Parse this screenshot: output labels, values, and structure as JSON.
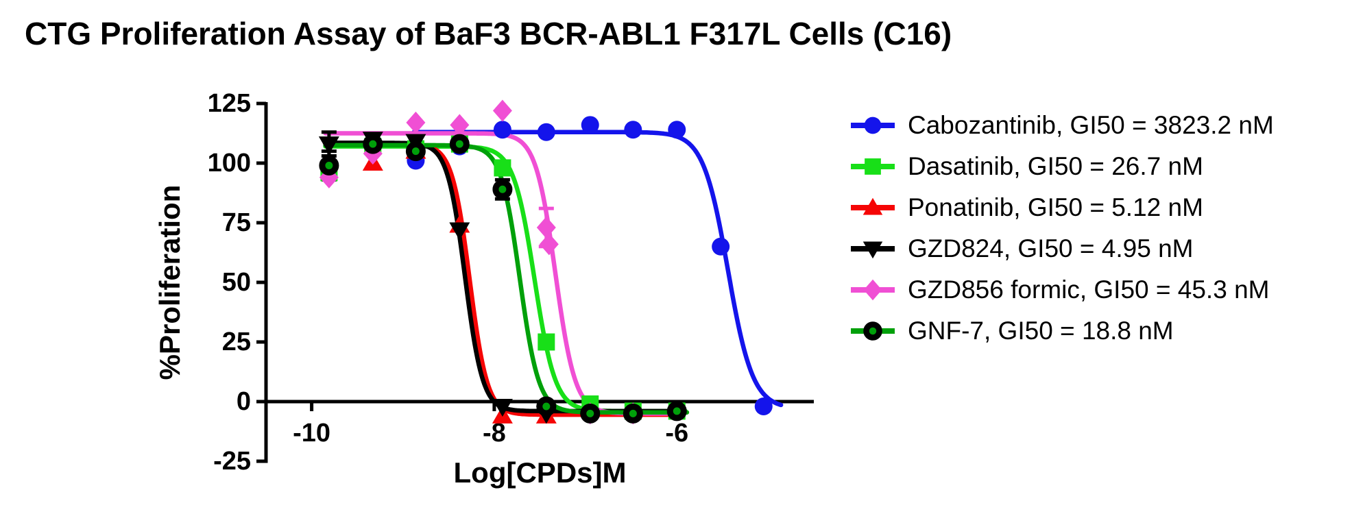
{
  "title": "CTG Proliferation Assay of BaF3 BCR-ABL1 F317L Cells (C16)",
  "colors": {
    "axis": "#000000",
    "background": "#ffffff",
    "text": "#000000"
  },
  "chart_data": {
    "type": "line",
    "title": "CTG Proliferation Assay of BaF3 BCR-ABL1 F317L Cells (C16)",
    "xlabel": "Log[CPDs]M",
    "ylabel": "%Proliferation",
    "xlim": [
      -10.5,
      -4.5
    ],
    "ylim": [
      -25,
      125
    ],
    "grid": false,
    "legend_position": "right",
    "x_ticks": [
      {
        "value": -10,
        "label": "-10"
      },
      {
        "value": -8,
        "label": "-8"
      },
      {
        "value": -6,
        "label": "-6"
      }
    ],
    "y_ticks": [
      {
        "value": 125,
        "label": "125"
      },
      {
        "value": 100,
        "label": "100"
      },
      {
        "value": 75,
        "label": "75"
      },
      {
        "value": 50,
        "label": "50"
      },
      {
        "value": 25,
        "label": "25"
      },
      {
        "value": 0,
        "label": "0"
      },
      {
        "value": -25,
        "label": "-25"
      }
    ],
    "series": [
      {
        "name": "Cabozantinib",
        "label": "Cabozantinib,  GI50 = 3823.2 nM",
        "gi50_nM": 3823.2,
        "color": "#1414EB",
        "marker": "circle",
        "points": [
          [
            -8.86,
            101
          ],
          [
            -8.38,
            107
          ],
          [
            -7.91,
            114
          ],
          [
            -7.43,
            113
          ],
          [
            -6.95,
            116
          ],
          [
            -6.48,
            114
          ],
          [
            -6.0,
            114
          ],
          [
            -5.52,
            65
          ],
          [
            -5.05,
            -2
          ]
        ],
        "fit": {
          "top": 113,
          "bottom": -3,
          "loggi50": -5.44,
          "hill": 3.2,
          "range": [
            -8.88,
            -4.85
          ]
        }
      },
      {
        "name": "Dasatinib",
        "label": "Dasatinib,  GI50 = 26.7 nM",
        "gi50_nM": 26.7,
        "color": "#18DF18",
        "marker": "square",
        "points": [
          [
            -9.81,
            96
          ],
          [
            -9.33,
            107
          ],
          [
            -8.86,
            106
          ],
          [
            -8.38,
            108
          ],
          [
            -7.91,
            98
          ],
          [
            -7.43,
            25
          ],
          [
            -6.95,
            -1
          ],
          [
            -6.48,
            -4
          ],
          [
            -6.0,
            -4
          ]
        ],
        "fit": {
          "top": 107,
          "bottom": -4,
          "loggi50": -7.56,
          "hill": 3.8,
          "range": [
            -9.85,
            -5.9
          ]
        }
      },
      {
        "name": "Ponatinib",
        "label": "Ponatinib,  GI50 = 5.12 nM",
        "gi50_nM": 5.12,
        "color": "#F50505",
        "marker": "triangle-up",
        "points": [
          [
            -9.33,
            100
          ],
          [
            -8.86,
            105
          ],
          [
            -8.38,
            74
          ],
          [
            -7.91,
            -6
          ],
          [
            -7.43,
            -6
          ]
        ],
        "fit": {
          "top": 108,
          "bottom": -5.5,
          "loggi50": -8.27,
          "hill": 4.5,
          "range": [
            -9.85,
            -5.95
          ]
        }
      },
      {
        "name": "GZD824",
        "label": "GZD824,  GI50 = 4.95 nM",
        "gi50_nM": 4.95,
        "color": "#000000",
        "marker": "triangle-down",
        "points": [
          [
            -9.81,
            108,
            5
          ],
          [
            -9.33,
            110
          ],
          [
            -8.86,
            109
          ],
          [
            -8.38,
            72
          ],
          [
            -7.91,
            -2
          ],
          [
            -7.43,
            -5
          ]
        ],
        "fit": {
          "top": 108.5,
          "bottom": -4,
          "loggi50": -8.32,
          "hill": 4.5,
          "range": [
            -9.85,
            -5.95
          ]
        }
      },
      {
        "name": "GZD856 formic",
        "label": "GZD856 formic,  GI50 = 45.3 nM",
        "gi50_nM": 45.3,
        "color": "#F04FD4",
        "marker": "diamond",
        "points": [
          [
            -9.81,
            94
          ],
          [
            -9.33,
            104
          ],
          [
            -8.86,
            117
          ],
          [
            -8.38,
            116
          ],
          [
            -7.91,
            122
          ],
          [
            -7.43,
            73,
            8
          ],
          [
            -7.4,
            66
          ],
          [
            -6.95,
            -5
          ],
          [
            -6.48,
            -5
          ]
        ],
        "fit": {
          "top": 112.5,
          "bottom": -5,
          "loggi50": -7.33,
          "hill": 4.0,
          "range": [
            -9.85,
            -5.95
          ]
        }
      },
      {
        "name": "GNF-7",
        "label": "GNF-7,  GI50 = 18.8 nM",
        "gi50_nM": 18.8,
        "color": "#00A00A",
        "marker": "donut",
        "ring_color": "#000000",
        "err_color": "#000000",
        "points": [
          [
            -9.81,
            99,
            6
          ],
          [
            -9.33,
            108
          ],
          [
            -8.86,
            105
          ],
          [
            -8.38,
            108
          ],
          [
            -7.91,
            89,
            4
          ],
          [
            -7.43,
            -2
          ],
          [
            -6.95,
            -5
          ],
          [
            -6.48,
            -5
          ],
          [
            -6.0,
            -4
          ]
        ],
        "fit": {
          "top": 107.5,
          "bottom": -4.5,
          "loggi50": -7.72,
          "hill": 4.2,
          "range": [
            -9.85,
            -5.88
          ]
        }
      }
    ]
  }
}
